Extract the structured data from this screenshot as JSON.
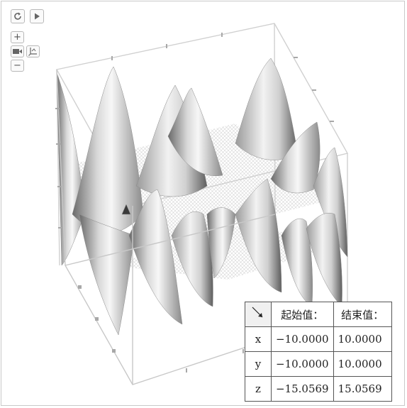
{
  "controls": {
    "reset_icon": "refresh-icon",
    "play_icon": "play-icon",
    "zoom_in_label": "+",
    "zoom_out_label": "−",
    "camera_icon": "camera-icon",
    "axes_icon": "axes-icon"
  },
  "range_table": {
    "corner_icon": "diagonal-arrow-icon",
    "headers": [
      "起始值：",
      "结束值："
    ],
    "rows": [
      {
        "axis": "x",
        "start": "−10.0000",
        "end": "10.0000"
      },
      {
        "axis": "y",
        "start": "−10.0000",
        "end": "10.0000"
      },
      {
        "axis": "z",
        "start": "−15.0569",
        "end": "15.0569"
      }
    ]
  },
  "colors": {
    "surface_light": "#f4f4f4",
    "surface_dark": "#5a5a5a",
    "box_edge": "#c8c8c8",
    "tick": "#a0a0a0"
  }
}
